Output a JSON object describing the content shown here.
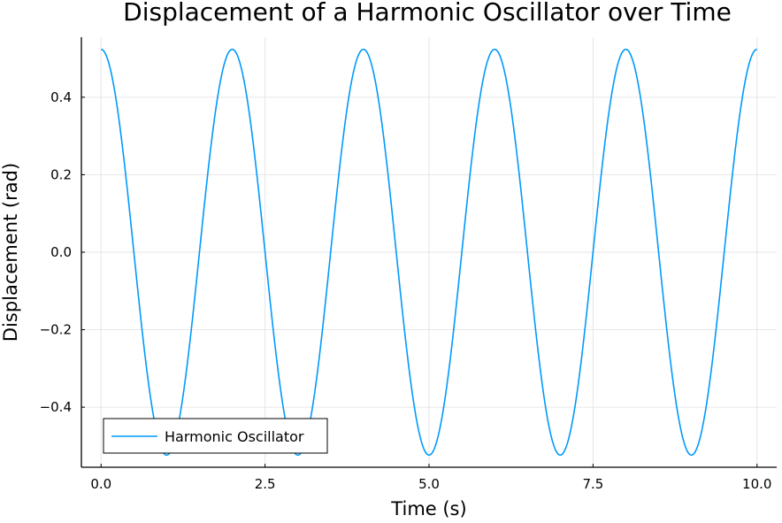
{
  "chart_data": {
    "type": "line",
    "title": "Displacement of a Harmonic Oscillator over Time",
    "xlabel": "Time (s)",
    "ylabel": "Displacement (rad)",
    "xlim": [
      -0.3,
      10.3
    ],
    "ylim": [
      -0.555,
      0.555
    ],
    "xticks": [
      0.0,
      2.5,
      5.0,
      7.5,
      10.0
    ],
    "xtick_labels": [
      "0.0",
      "2.5",
      "5.0",
      "7.5",
      "10.0"
    ],
    "yticks": [
      -0.4,
      -0.2,
      0.0,
      0.2,
      0.4
    ],
    "ytick_labels": [
      "−0.4",
      "−0.2",
      "0.0",
      "0.2",
      "0.4"
    ],
    "grid": true,
    "legend_position": "bottom-left",
    "line_color": "#009AFA",
    "series": [
      {
        "name": "Harmonic Oscillator",
        "function": "0.5236*cos(pi*t)",
        "amplitude": 0.5236,
        "period": 2.0,
        "x_start": 0.0,
        "x_end": 10.0
      }
    ]
  }
}
